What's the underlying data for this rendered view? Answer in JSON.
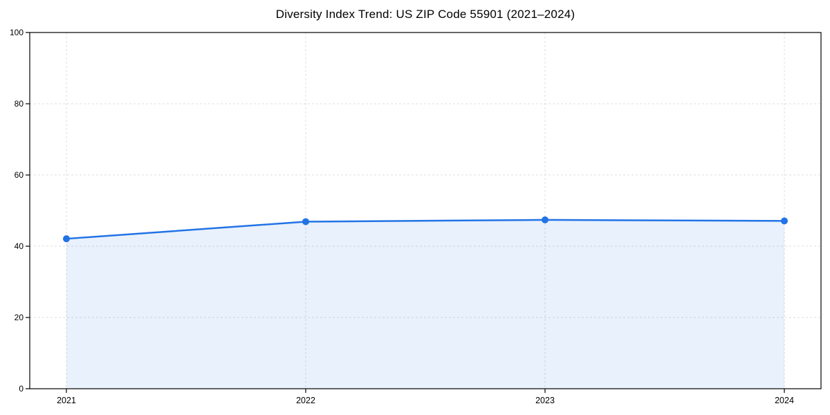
{
  "page": {
    "background": "#ffffff"
  },
  "chart_data": {
    "type": "area",
    "title": "Diversity Index Trend: US ZIP Code 55901 (2021–2024)",
    "categories": [
      "2021",
      "2022",
      "2023",
      "2024"
    ],
    "series": [
      {
        "name": "Diversity Index",
        "values": [
          42.1,
          46.9,
          47.4,
          47.1
        ]
      }
    ],
    "xlabel": "",
    "ylabel": "",
    "ylim": [
      0,
      100
    ],
    "yticks": [
      0,
      20,
      40,
      60,
      80,
      100
    ],
    "grid": true,
    "grid_style": "dashed",
    "legend": "none",
    "colors": {
      "line": "#2173e6",
      "marker": "#2173e6",
      "fill": "rgba(33, 115, 230, 0.10)",
      "grid": "#dcdcdc",
      "axis": "#000000",
      "tick_text": "#000000"
    }
  }
}
